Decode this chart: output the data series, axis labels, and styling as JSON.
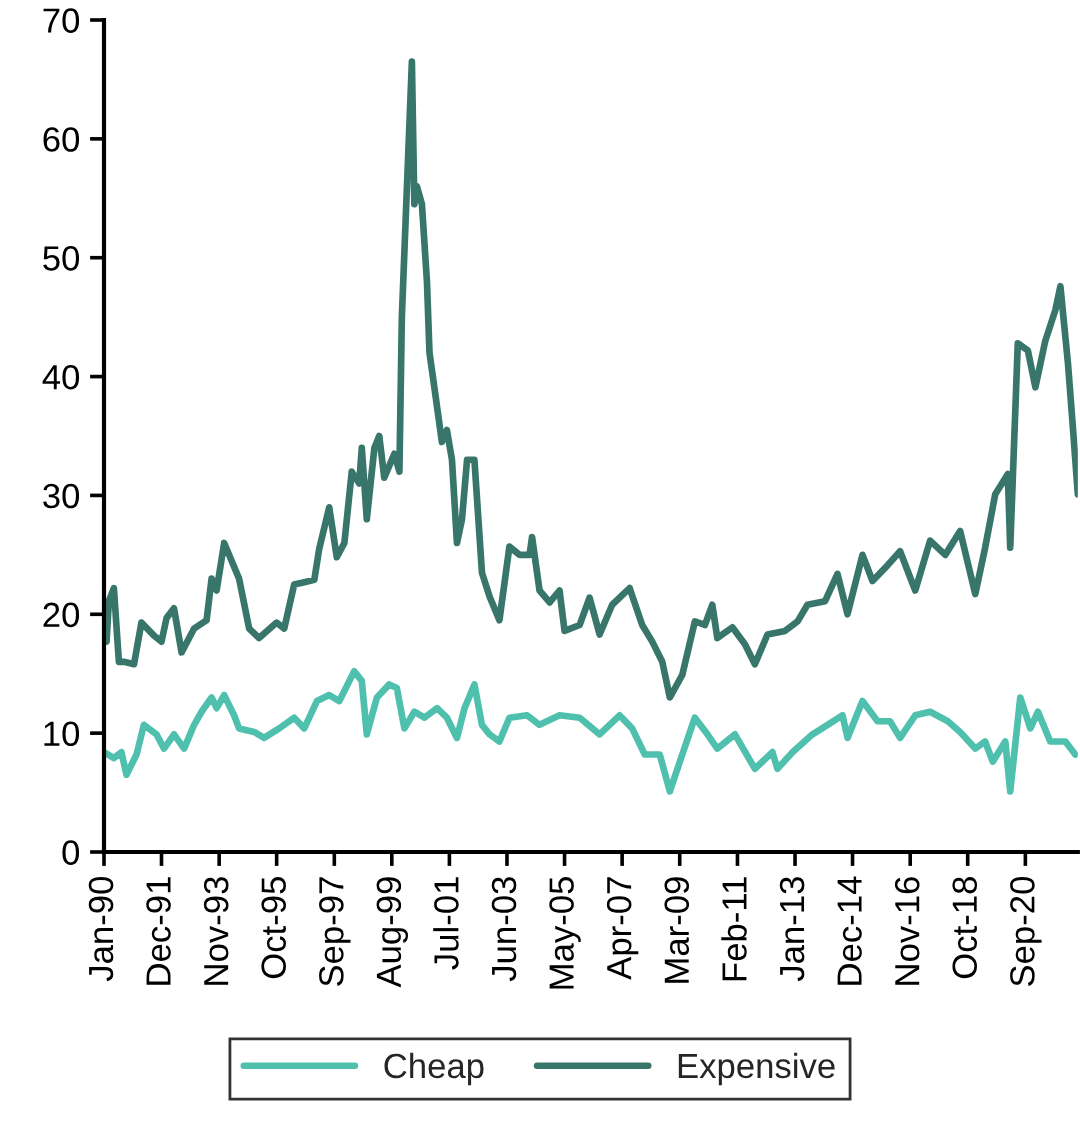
{
  "chart_data": {
    "type": "line",
    "xlim": [
      "1990-01",
      "2022-06"
    ],
    "xticks": [
      {
        "value": "1990-01",
        "label": "Jan-90"
      },
      {
        "value": "1991-12",
        "label": "Dec-91"
      },
      {
        "value": "1993-11",
        "label": "Nov-93"
      },
      {
        "value": "1995-10",
        "label": "Oct-95"
      },
      {
        "value": "1997-09",
        "label": "Sep-97"
      },
      {
        "value": "1999-08",
        "label": "Aug-99"
      },
      {
        "value": "2001-07",
        "label": "Jul-01"
      },
      {
        "value": "2003-06",
        "label": "Jun-03"
      },
      {
        "value": "2005-05",
        "label": "May-05"
      },
      {
        "value": "2007-04",
        "label": "Apr-07"
      },
      {
        "value": "2009-03",
        "label": "Mar-09"
      },
      {
        "value": "2011-02",
        "label": "Feb-11"
      },
      {
        "value": "2013-01",
        "label": "Jan-13"
      },
      {
        "value": "2014-12",
        "label": "Dec-14"
      },
      {
        "value": "2016-11",
        "label": "Nov-16"
      },
      {
        "value": "2018-10",
        "label": "Oct-18"
      },
      {
        "value": "2020-09",
        "label": "Sep-20"
      }
    ],
    "ylim": [
      0,
      70
    ],
    "yticks": [
      0,
      10,
      20,
      30,
      40,
      50,
      60,
      70
    ],
    "grid": false,
    "legend": "bottom",
    "marker": "none",
    "line_style": "solid",
    "series": [
      {
        "name": "Cheap",
        "color": "#4fc0ad",
        "x": [
          "1990-01",
          "1990-05",
          "1990-08",
          "1990-10",
          "1991-02",
          "1991-05",
          "1991-10",
          "1992-01",
          "1992-05",
          "1992-09",
          "1993-01",
          "1993-04",
          "1993-08",
          "1993-10",
          "1994-01",
          "1994-05",
          "1994-07",
          "1995-01",
          "1995-05",
          "1995-11",
          "1996-05",
          "1996-09",
          "1997-02",
          "1997-07",
          "1997-11",
          "1998-05",
          "1998-08",
          "1998-10",
          "1999-02",
          "1999-07",
          "1999-10",
          "2000-01",
          "2000-05",
          "2000-09",
          "2001-02",
          "2001-06",
          "2001-10",
          "2002-01",
          "2002-05",
          "2002-08",
          "2002-11",
          "2003-03",
          "2003-07",
          "2004-02",
          "2004-07",
          "2005-03",
          "2005-11",
          "2006-07",
          "2007-03",
          "2007-08",
          "2008-01",
          "2008-07",
          "2008-11",
          "2009-04",
          "2009-09",
          "2010-02",
          "2010-06",
          "2011-01",
          "2011-09",
          "2012-04",
          "2012-06",
          "2012-12",
          "2013-08",
          "2014-02",
          "2014-08",
          "2014-10",
          "2015-04",
          "2015-10",
          "2016-03",
          "2016-07",
          "2017-01",
          "2017-07",
          "2018-02",
          "2018-07",
          "2019-01",
          "2019-05",
          "2019-08",
          "2020-01",
          "2020-03",
          "2020-07",
          "2020-11",
          "2021-02",
          "2021-07",
          "2022-01",
          "2022-05"
        ],
        "values": [
          8.4,
          7.9,
          8.4,
          6.5,
          8.2,
          10.7,
          9.9,
          8.7,
          9.9,
          8.7,
          10.7,
          11.8,
          13,
          12.1,
          13.2,
          11.5,
          10.4,
          10.1,
          9.6,
          10.4,
          11.3,
          10.4,
          12.7,
          13.2,
          12.7,
          15.2,
          14.4,
          9.9,
          13,
          14.1,
          13.8,
          10.4,
          11.8,
          11.3,
          12.1,
          11.3,
          9.6,
          12.1,
          14.1,
          10.7,
          9.9,
          9.3,
          11.3,
          11.5,
          10.7,
          11.5,
          11.3,
          9.9,
          11.5,
          10.4,
          8.2,
          8.2,
          5.1,
          8.2,
          11.3,
          9.9,
          8.7,
          9.9,
          7,
          8.4,
          7,
          8.4,
          9.9,
          10.7,
          11.5,
          9.6,
          12.7,
          11,
          11,
          9.6,
          11.5,
          11.8,
          11,
          10.1,
          8.7,
          9.3,
          7.6,
          9.3,
          5.1,
          13,
          10.4,
          11.8,
          9.3,
          9.3,
          8.2
        ]
      },
      {
        "name": "Expensive",
        "color": "#38766b",
        "x": [
          "1990-01",
          "1990-02",
          "1990-03",
          "1990-05",
          "1990-07",
          "1990-09",
          "1991-01",
          "1991-04",
          "1991-09",
          "1991-12",
          "1992-02",
          "1992-05",
          "1992-08",
          "1993-01",
          "1993-06",
          "1993-08",
          "1993-10",
          "1994-01",
          "1994-04",
          "1994-07",
          "1994-11",
          "1995-03",
          "1995-10",
          "1996-01",
          "1996-05",
          "1996-09",
          "1997-01",
          "1997-03",
          "1997-07",
          "1997-10",
          "1998-01",
          "1998-04",
          "1998-07",
          "1998-08",
          "1998-10",
          "1999-01",
          "1999-03",
          "1999-05",
          "1999-09",
          "1999-11",
          "1999-12",
          "2000-02",
          "2000-04",
          "2000-05",
          "2000-06",
          "2000-08",
          "2000-10",
          "2000-11",
          "2001-01",
          "2001-04",
          "2001-06",
          "2001-08",
          "2001-10",
          "2001-12",
          "2002-02",
          "2002-05",
          "2002-08",
          "2002-11",
          "2003-03",
          "2003-07",
          "2003-11",
          "2004-03",
          "2004-04",
          "2004-07",
          "2004-11",
          "2005-03",
          "2005-05",
          "2005-11",
          "2006-03",
          "2006-07",
          "2006-12",
          "2007-07",
          "2007-12",
          "2008-04",
          "2008-08",
          "2008-11",
          "2009-04",
          "2009-09",
          "2010-01",
          "2010-04",
          "2010-06",
          "2010-12",
          "2011-05",
          "2011-09",
          "2012-02",
          "2012-09",
          "2013-02",
          "2013-06",
          "2014-01",
          "2014-06",
          "2014-10",
          "2015-04",
          "2015-08",
          "2016-01",
          "2016-07",
          "2017-01",
          "2017-07",
          "2018-01",
          "2018-07",
          "2019-01",
          "2019-05",
          "2019-09",
          "2020-02",
          "2020-03",
          "2020-06",
          "2020-10",
          "2021-01",
          "2021-05",
          "2021-09",
          "2021-11",
          "2022-02",
          "2022-04",
          "2022-06"
        ],
        "values": [
          20.3,
          17.7,
          21.1,
          22.2,
          16,
          16,
          15.8,
          19.3,
          18.2,
          17.7,
          19.7,
          20.5,
          16.8,
          18.8,
          19.5,
          23,
          22,
          26,
          24.5,
          23,
          18.8,
          18,
          19.3,
          18.8,
          22.5,
          22.7,
          22.9,
          25.5,
          29,
          24.8,
          26,
          32,
          31,
          34,
          28,
          34,
          35,
          31.5,
          33.5,
          32,
          45,
          56,
          66.5,
          54.5,
          56,
          54.5,
          48,
          42,
          39,
          34.5,
          35.5,
          33,
          26,
          28,
          33,
          33,
          23.5,
          21.5,
          19.5,
          25.7,
          25,
          25,
          26.5,
          22,
          21,
          22,
          18.6,
          19.1,
          21.4,
          18.3,
          20.8,
          22.2,
          19.1,
          17.7,
          16,
          13,
          14.9,
          19.4,
          19.1,
          20.8,
          18,
          18.9,
          17.5,
          15.8,
          18.3,
          18.6,
          19.4,
          20.8,
          21.1,
          23.4,
          20,
          25,
          22.8,
          23.9,
          25.3,
          22,
          26.2,
          25,
          27,
          21.7,
          25.6,
          30.1,
          31.8,
          25.6,
          42.8,
          42.2,
          39.1,
          43,
          45.6,
          47.6,
          41.1,
          35.8,
          30.1
        ]
      }
    ]
  }
}
